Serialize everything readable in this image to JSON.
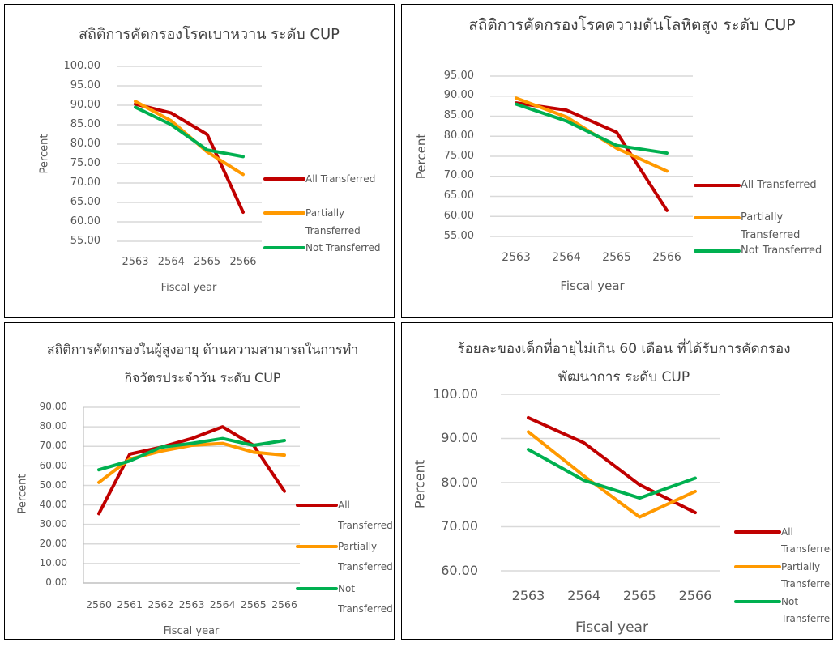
{
  "colors": {
    "all_transferred": "#C00000",
    "partially_transferred": "#FF9900",
    "not_transferred": "#00B050",
    "gridline": "#D9D9D9"
  },
  "chart_data": [
    {
      "type": "line",
      "title": "สถิติการคัดกรองโรคเบาหวาน  ระดับ CUP",
      "xlabel": "Fiscal year",
      "ylabel": "Percent",
      "categories": [
        "2563",
        "2564",
        "2565",
        "2566"
      ],
      "ylim": [
        55,
        100
      ],
      "ytick_labels": [
        "100.00",
        "95.00",
        "90.00",
        "85.00",
        "80.00",
        "75.00",
        "70.00",
        "65.00",
        "60.00",
        "55.00"
      ],
      "grid": true,
      "legend": "right",
      "series": [
        {
          "name": "All Transferred",
          "values": [
            90.3,
            88.0,
            82.5,
            62.5
          ]
        },
        {
          "name": "Partially Transferred",
          "values": [
            91.0,
            86.0,
            78.0,
            72.2
          ]
        },
        {
          "name": "Not Transferred",
          "values": [
            89.5,
            85.0,
            78.5,
            76.8
          ]
        }
      ]
    },
    {
      "type": "line",
      "title": "สถิติการคัดกรองโรคความดันโลหิตสูง  ระดับ CUP",
      "xlabel": "Fiscal year",
      "ylabel": "Percent",
      "categories": [
        "2563",
        "2564",
        "2565",
        "2566"
      ],
      "ylim": [
        55,
        95
      ],
      "ytick_labels": [
        "95.00",
        "90.00",
        "85.00",
        "80.00",
        "75.00",
        "70.00",
        "65.00",
        "60.00",
        "55.00"
      ],
      "grid": true,
      "legend": "right",
      "series": [
        {
          "name": "All Transferred",
          "values": [
            88.3,
            86.5,
            81.0,
            61.5
          ]
        },
        {
          "name": "Partially Transferred",
          "values": [
            89.5,
            84.8,
            77.0,
            71.3
          ]
        },
        {
          "name": "Not Transferred",
          "values": [
            88.0,
            83.8,
            77.7,
            75.8
          ]
        }
      ]
    },
    {
      "type": "line",
      "title": "สถิติการคัดกรองในผู้สูงอายุ ด้านความสามารถในการทำกิจวัตรประจำวัน ระดับ CUP",
      "xlabel": "Fiscal year",
      "ylabel": "Percent",
      "categories": [
        "2560",
        "2561",
        "2562",
        "2563",
        "2564",
        "2565",
        "2566"
      ],
      "ylim": [
        0,
        90
      ],
      "ytick_labels": [
        "90.00",
        "80.00",
        "70.00",
        "60.00",
        "50.00",
        "40.00",
        "30.00",
        "20.00",
        "10.00",
        "0.00"
      ],
      "grid": true,
      "legend": "right",
      "series": [
        {
          "name": "All Transferred",
          "values": [
            35.5,
            66.0,
            69.5,
            74.0,
            80.0,
            70.5,
            47.0
          ]
        },
        {
          "name": "Partially Transferred",
          "values": [
            51.5,
            63.5,
            67.5,
            70.5,
            71.5,
            67.0,
            65.5
          ]
        },
        {
          "name": "Not Transferred",
          "values": [
            58.0,
            62.5,
            69.5,
            71.5,
            74.0,
            70.5,
            73.0
          ]
        }
      ]
    },
    {
      "type": "line",
      "title": "ร้อยละของเด็กที่อายุไม่เกิน 60 เดือน ที่ได้รับการคัดกรองพัฒนาการ ระดับ CUP",
      "xlabel": "Fiscal year",
      "ylabel": "Percent",
      "categories": [
        "2563",
        "2564",
        "2565",
        "2566"
      ],
      "ylim": [
        60,
        100
      ],
      "ytick_labels": [
        "100.00",
        "90.00",
        "80.00",
        "70.00",
        "60.00"
      ],
      "grid": true,
      "legend": "right",
      "series": [
        {
          "name": "All Transferred",
          "values": [
            94.7,
            89.0,
            79.5,
            73.2
          ]
        },
        {
          "name": "Partially Transferred",
          "values": [
            91.5,
            81.5,
            72.2,
            78.0
          ]
        },
        {
          "name": "Not Transferred",
          "values": [
            87.5,
            80.5,
            76.5,
            81.0
          ]
        }
      ]
    }
  ]
}
